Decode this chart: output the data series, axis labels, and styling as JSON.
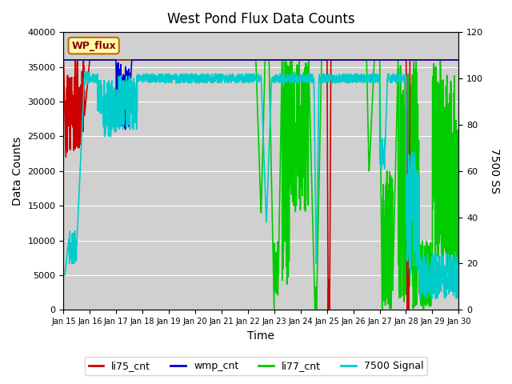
{
  "title": "West Pond Flux Data Counts",
  "xlabel": "Time",
  "ylabel_left": "Data Counts",
  "ylabel_right": "7500 SS",
  "ylim_left": [
    0,
    40000
  ],
  "ylim_right": [
    0,
    120
  ],
  "xlim": [
    0,
    15
  ],
  "xtick_labels": [
    "Jan 15",
    "Jan 16",
    "Jan 17",
    "Jan 18",
    "Jan 19",
    "Jan 20",
    "Jan 21",
    "Jan 22",
    "Jan 23",
    "Jan 24",
    "Jan 25",
    "Jan 26",
    "Jan 27",
    "Jan 28",
    "Jan 29",
    "Jan 30"
  ],
  "xtick_positions": [
    0,
    1,
    2,
    3,
    4,
    5,
    6,
    7,
    8,
    9,
    10,
    11,
    12,
    13,
    14,
    15
  ],
  "box_label": "WP_flux",
  "box_facecolor": "#ffffaa",
  "box_edgecolor": "#cc6600",
  "colors": {
    "li75_cnt": "#cc0000",
    "wmp_cnt": "#0000cc",
    "li77_cnt": "#00cc00",
    "7500_signal": "#00cccc"
  },
  "legend_labels": [
    "li75_cnt",
    "wmp_cnt",
    "li77_cnt",
    "7500 Signal"
  ],
  "bg_color": "#d0d0d0",
  "linewidth": 1.2
}
